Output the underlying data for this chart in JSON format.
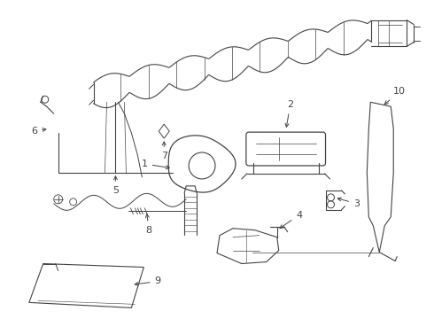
{
  "bg_color": "#ffffff",
  "line_color": "#444444",
  "label_color": "#000000",
  "figsize": [
    4.9,
    3.6
  ],
  "dpi": 100
}
